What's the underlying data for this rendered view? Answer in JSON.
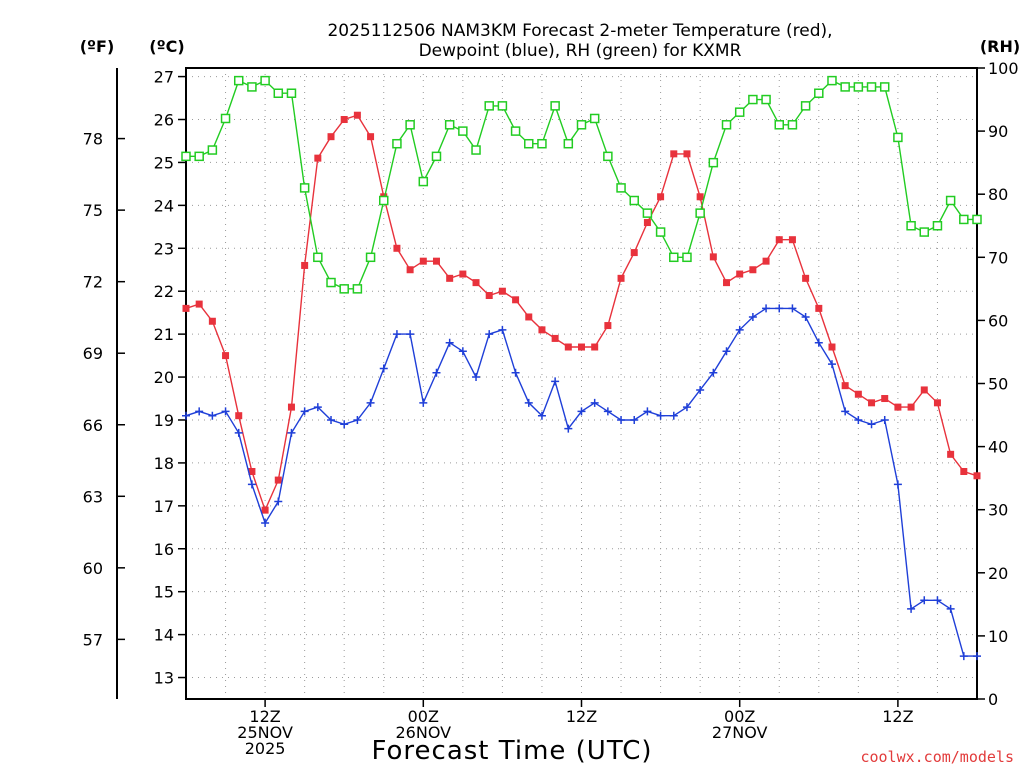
{
  "chart_data": {
    "type": "line",
    "title": "2025112506 NAM3KM Forecast 2-meter Temperature (red),",
    "subtitle": "Dewpoint (blue), RH (green) for KXMR",
    "xlabel": "Forecast Time (UTC)",
    "y_left_unit": "(ºC)",
    "y_far_left_unit": "(ºF)",
    "y_right_unit": "(RH)",
    "x_range_hours": [
      6,
      66
    ],
    "ylim_c": [
      12.5,
      27.2
    ],
    "ylim_rh": [
      0,
      100
    ],
    "grid": true,
    "celsius_ticks": [
      13,
      14,
      15,
      16,
      17,
      18,
      19,
      20,
      21,
      22,
      23,
      24,
      25,
      26,
      27
    ],
    "fahrenheit_ticks": [
      57,
      60,
      63,
      66,
      69,
      72,
      75,
      78
    ],
    "rh_ticks": [
      0,
      10,
      20,
      30,
      40,
      50,
      60,
      70,
      80,
      90,
      100
    ],
    "x_ticks": [
      {
        "hour": 12,
        "labels": [
          "12Z",
          "25NOV",
          "2025"
        ]
      },
      {
        "hour": 24,
        "labels": [
          "00Z",
          "26NOV"
        ]
      },
      {
        "hour": 36,
        "labels": [
          "12Z"
        ]
      },
      {
        "hour": 48,
        "labels": [
          "00Z",
          "27NOV"
        ]
      },
      {
        "hour": 60,
        "labels": [
          "12Z"
        ]
      }
    ],
    "x": [
      6,
      7,
      8,
      9,
      10,
      11,
      12,
      13,
      14,
      15,
      16,
      17,
      18,
      19,
      20,
      21,
      22,
      23,
      24,
      25,
      26,
      27,
      28,
      29,
      30,
      31,
      32,
      33,
      34,
      35,
      36,
      37,
      38,
      39,
      40,
      41,
      42,
      43,
      44,
      45,
      46,
      47,
      48,
      49,
      50,
      51,
      52,
      53,
      54,
      55,
      56,
      57,
      58,
      59,
      60,
      61,
      62,
      63,
      64,
      65,
      66
    ],
    "series": [
      {
        "name": "Temperature",
        "color": "#e8323c",
        "axis": "celsius",
        "marker": "filled-square",
        "values": [
          21.6,
          21.7,
          21.3,
          20.5,
          19.1,
          17.8,
          16.9,
          17.6,
          19.3,
          22.6,
          25.1,
          25.6,
          26.0,
          26.1,
          25.6,
          24.2,
          23.0,
          22.5,
          22.7,
          22.7,
          22.3,
          22.4,
          22.2,
          21.9,
          22.0,
          21.8,
          21.4,
          21.1,
          20.9,
          20.7,
          20.7,
          20.7,
          21.2,
          22.3,
          22.9,
          23.6,
          24.2,
          25.2,
          25.2,
          24.2,
          22.8,
          22.2,
          22.4,
          22.5,
          22.7,
          23.2,
          23.2,
          22.3,
          21.6,
          20.7,
          19.8,
          19.6,
          19.4,
          19.5,
          19.3,
          19.3,
          19.7,
          19.4,
          18.2,
          17.8,
          17.7
        ]
      },
      {
        "name": "Dewpoint",
        "color": "#1f3fd8",
        "axis": "celsius",
        "marker": "plus",
        "values": [
          19.1,
          19.2,
          19.1,
          19.2,
          18.7,
          17.5,
          16.6,
          17.1,
          18.7,
          19.2,
          19.3,
          19.0,
          18.9,
          19.0,
          19.4,
          20.2,
          21.0,
          21.0,
          19.4,
          20.1,
          20.8,
          20.6,
          20.0,
          21.0,
          21.1,
          20.1,
          19.4,
          19.1,
          19.9,
          18.8,
          19.2,
          19.4,
          19.2,
          19.0,
          19.0,
          19.2,
          19.1,
          19.1,
          19.3,
          19.7,
          20.1,
          20.6,
          21.1,
          21.4,
          21.6,
          21.6,
          21.6,
          21.4,
          20.8,
          20.3,
          19.2,
          19.0,
          18.9,
          19.0,
          17.5,
          14.6,
          14.8,
          14.8,
          14.6,
          13.5,
          13.5
        ]
      },
      {
        "name": "RH",
        "color": "#22cc22",
        "axis": "rh",
        "marker": "open-square",
        "values": [
          86,
          86,
          87,
          92,
          98,
          97,
          98,
          96,
          96,
          81,
          70,
          66,
          65,
          65,
          70,
          79,
          88,
          91,
          82,
          86,
          91,
          90,
          87,
          94,
          94,
          90,
          88,
          88,
          94,
          88,
          91,
          92,
          86,
          81,
          79,
          77,
          74,
          70,
          70,
          77,
          85,
          91,
          93,
          95,
          95,
          91,
          91,
          94,
          96,
          98,
          97,
          97,
          97,
          97,
          89,
          75,
          74,
          75,
          79,
          76,
          76
        ]
      }
    ]
  },
  "labels": {
    "credit": "coolwx.com/models"
  }
}
